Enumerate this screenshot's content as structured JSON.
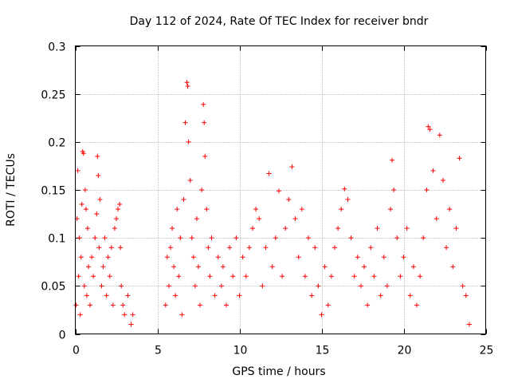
{
  "chart_data": {
    "type": "scatter",
    "title": "Day 112 of 2024, Rate Of TEC Index for receiver bndr",
    "xlabel": "GPS time / hours",
    "ylabel": "ROTI / TECUs",
    "xlim": [
      0,
      25
    ],
    "ylim": [
      0,
      0.3
    ],
    "xticks": [
      0,
      5,
      10,
      15,
      20,
      25
    ],
    "yticks": [
      0,
      0.05,
      0.1,
      0.15,
      0.2,
      0.25,
      0.3
    ],
    "xtick_labels": [
      "0",
      "5",
      "10",
      "15",
      "20",
      "25"
    ],
    "ytick_labels": [
      "0",
      "0.05",
      "0.1",
      "0.15",
      "0.2",
      "0.25",
      "0.3"
    ],
    "grid": true,
    "marker": "+",
    "color": "#ff0000",
    "series": [
      {
        "name": "ROTI",
        "points": [
          [
            0.05,
            0.03
          ],
          [
            0.1,
            0.12
          ],
          [
            0.15,
            0.17
          ],
          [
            0.2,
            0.06
          ],
          [
            0.25,
            0.1
          ],
          [
            0.3,
            0.02
          ],
          [
            0.35,
            0.08
          ],
          [
            0.4,
            0.135
          ],
          [
            0.45,
            0.19
          ],
          [
            0.5,
            0.188
          ],
          [
            0.55,
            0.05
          ],
          [
            0.6,
            0.15
          ],
          [
            0.65,
            0.13
          ],
          [
            0.7,
            0.04
          ],
          [
            0.75,
            0.11
          ],
          [
            0.8,
            0.07
          ],
          [
            0.9,
            0.03
          ],
          [
            1.0,
            0.08
          ],
          [
            1.1,
            0.06
          ],
          [
            1.2,
            0.1
          ],
          [
            1.3,
            0.125
          ],
          [
            1.35,
            0.185
          ],
          [
            1.4,
            0.165
          ],
          [
            1.45,
            0.09
          ],
          [
            1.5,
            0.14
          ],
          [
            1.6,
            0.05
          ],
          [
            1.7,
            0.07
          ],
          [
            1.8,
            0.1
          ],
          [
            1.9,
            0.04
          ],
          [
            2.0,
            0.08
          ],
          [
            2.1,
            0.06
          ],
          [
            2.2,
            0.09
          ],
          [
            2.3,
            0.03
          ],
          [
            2.4,
            0.11
          ],
          [
            2.5,
            0.12
          ],
          [
            2.6,
            0.13
          ],
          [
            2.7,
            0.135
          ],
          [
            2.75,
            0.09
          ],
          [
            2.8,
            0.05
          ],
          [
            2.9,
            0.03
          ],
          [
            3.0,
            0.02
          ],
          [
            3.2,
            0.04
          ],
          [
            3.4,
            0.01
          ],
          [
            3.5,
            0.02
          ],
          [
            5.5,
            0.03
          ],
          [
            5.6,
            0.08
          ],
          [
            5.7,
            0.05
          ],
          [
            5.8,
            0.09
          ],
          [
            5.9,
            0.11
          ],
          [
            6.0,
            0.07
          ],
          [
            6.1,
            0.04
          ],
          [
            6.2,
            0.13
          ],
          [
            6.3,
            0.06
          ],
          [
            6.4,
            0.1
          ],
          [
            6.5,
            0.02
          ],
          [
            6.6,
            0.14
          ],
          [
            6.7,
            0.22
          ],
          [
            6.8,
            0.262
          ],
          [
            6.85,
            0.258
          ],
          [
            6.9,
            0.2
          ],
          [
            7.0,
            0.16
          ],
          [
            7.1,
            0.1
          ],
          [
            7.2,
            0.08
          ],
          [
            7.3,
            0.05
          ],
          [
            7.4,
            0.12
          ],
          [
            7.5,
            0.07
          ],
          [
            7.6,
            0.03
          ],
          [
            7.7,
            0.15
          ],
          [
            7.8,
            0.239
          ],
          [
            7.85,
            0.22
          ],
          [
            7.9,
            0.185
          ],
          [
            8.0,
            0.13
          ],
          [
            8.1,
            0.09
          ],
          [
            8.2,
            0.06
          ],
          [
            8.3,
            0.1
          ],
          [
            8.5,
            0.04
          ],
          [
            8.7,
            0.08
          ],
          [
            8.9,
            0.05
          ],
          [
            9.0,
            0.07
          ],
          [
            9.2,
            0.03
          ],
          [
            9.4,
            0.09
          ],
          [
            9.6,
            0.06
          ],
          [
            9.8,
            0.1
          ],
          [
            10.0,
            0.04
          ],
          [
            10.2,
            0.08
          ],
          [
            10.4,
            0.06
          ],
          [
            10.6,
            0.09
          ],
          [
            10.8,
            0.11
          ],
          [
            11.0,
            0.13
          ],
          [
            11.2,
            0.12
          ],
          [
            11.4,
            0.05
          ],
          [
            11.6,
            0.09
          ],
          [
            11.8,
            0.167
          ],
          [
            12.0,
            0.07
          ],
          [
            12.2,
            0.1
          ],
          [
            12.4,
            0.149
          ],
          [
            12.6,
            0.06
          ],
          [
            12.8,
            0.11
          ],
          [
            13.0,
            0.14
          ],
          [
            13.2,
            0.174
          ],
          [
            13.4,
            0.12
          ],
          [
            13.6,
            0.08
          ],
          [
            13.8,
            0.13
          ],
          [
            14.0,
            0.06
          ],
          [
            14.2,
            0.1
          ],
          [
            14.4,
            0.04
          ],
          [
            14.6,
            0.09
          ],
          [
            14.8,
            0.05
          ],
          [
            15.0,
            0.02
          ],
          [
            15.2,
            0.07
          ],
          [
            15.4,
            0.03
          ],
          [
            15.6,
            0.06
          ],
          [
            15.8,
            0.09
          ],
          [
            16.0,
            0.11
          ],
          [
            16.2,
            0.13
          ],
          [
            16.4,
            0.151
          ],
          [
            16.6,
            0.14
          ],
          [
            16.8,
            0.1
          ],
          [
            17.0,
            0.06
          ],
          [
            17.2,
            0.08
          ],
          [
            17.4,
            0.05
          ],
          [
            17.6,
            0.07
          ],
          [
            17.8,
            0.03
          ],
          [
            18.0,
            0.09
          ],
          [
            18.2,
            0.06
          ],
          [
            18.4,
            0.11
          ],
          [
            18.6,
            0.04
          ],
          [
            18.8,
            0.08
          ],
          [
            19.0,
            0.05
          ],
          [
            19.2,
            0.13
          ],
          [
            19.3,
            0.181
          ],
          [
            19.4,
            0.15
          ],
          [
            19.6,
            0.1
          ],
          [
            19.8,
            0.06
          ],
          [
            20.0,
            0.08
          ],
          [
            20.2,
            0.11
          ],
          [
            20.4,
            0.04
          ],
          [
            20.6,
            0.07
          ],
          [
            20.8,
            0.03
          ],
          [
            21.0,
            0.06
          ],
          [
            21.2,
            0.1
          ],
          [
            21.4,
            0.15
          ],
          [
            21.5,
            0.216
          ],
          [
            21.6,
            0.213
          ],
          [
            21.8,
            0.17
          ],
          [
            22.0,
            0.12
          ],
          [
            22.2,
            0.207
          ],
          [
            22.4,
            0.16
          ],
          [
            22.6,
            0.09
          ],
          [
            22.8,
            0.13
          ],
          [
            23.0,
            0.07
          ],
          [
            23.2,
            0.11
          ],
          [
            23.4,
            0.183
          ],
          [
            23.6,
            0.05
          ],
          [
            23.8,
            0.04
          ],
          [
            24.0,
            0.01
          ]
        ]
      }
    ]
  }
}
